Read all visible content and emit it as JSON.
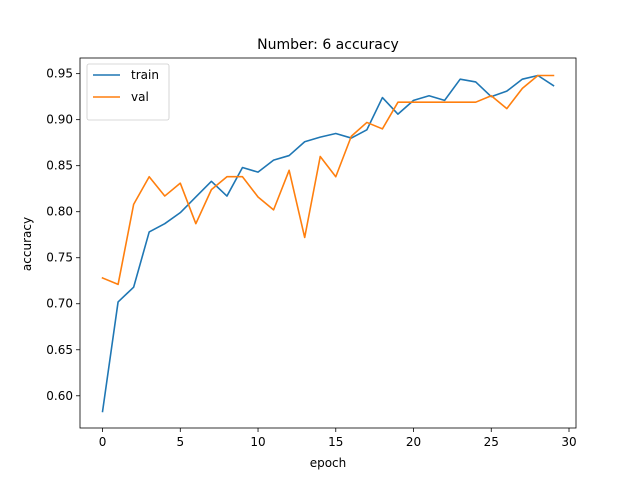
{
  "chart_data": {
    "type": "line",
    "title": "Number: 6 accuracy",
    "xlabel": "epoch",
    "ylabel": "accuracy",
    "xlim": [
      -1.45,
      30.45
    ],
    "ylim": [
      0.565,
      0.967
    ],
    "xticks": [
      0,
      5,
      10,
      15,
      20,
      25,
      30
    ],
    "yticks": [
      0.6,
      0.65,
      0.7,
      0.75,
      0.8,
      0.85,
      0.9,
      0.95
    ],
    "grid": false,
    "legend_position": "upper-left",
    "x": [
      0,
      1,
      2,
      3,
      4,
      5,
      6,
      7,
      8,
      9,
      10,
      11,
      12,
      13,
      14,
      15,
      16,
      17,
      18,
      19,
      20,
      21,
      22,
      23,
      24,
      25,
      26,
      27,
      28,
      29
    ],
    "series": [
      {
        "name": "train",
        "color": "#1f77b4",
        "values": [
          0.583,
          0.702,
          0.718,
          0.778,
          0.787,
          0.799,
          0.816,
          0.833,
          0.817,
          0.848,
          0.843,
          0.856,
          0.861,
          0.876,
          0.881,
          0.885,
          0.88,
          0.889,
          0.924,
          0.906,
          0.921,
          0.926,
          0.921,
          0.944,
          0.941,
          0.925,
          0.931,
          0.944,
          0.948,
          0.937
        ]
      },
      {
        "name": "val",
        "color": "#ff7f0e",
        "values": [
          0.728,
          0.721,
          0.808,
          0.838,
          0.817,
          0.831,
          0.787,
          0.824,
          0.838,
          0.838,
          0.816,
          0.802,
          0.845,
          0.772,
          0.86,
          0.838,
          0.882,
          0.897,
          0.89,
          0.919,
          0.919,
          0.919,
          0.919,
          0.919,
          0.919,
          0.926,
          0.912,
          0.934,
          0.948,
          0.948
        ]
      }
    ]
  }
}
